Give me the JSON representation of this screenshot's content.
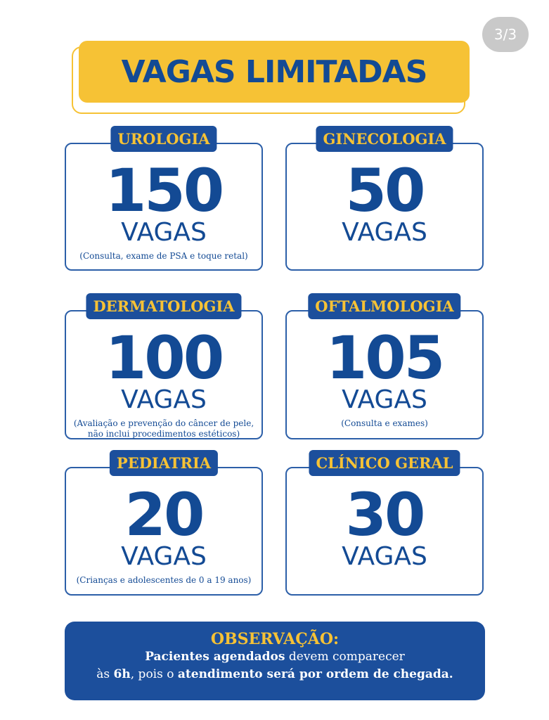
{
  "page_indicator": "3/3",
  "title": "VAGAS LIMITADAS",
  "cards": [
    {
      "specialty": "UROLOGIA",
      "number": 150,
      "unit": "VAGAS",
      "note": [
        "(Consulta, exame de PSA e toque retal)"
      ]
    },
    {
      "specialty": "GINECOLOGIA",
      "number": 50,
      "unit": "VAGAS",
      "note": []
    },
    {
      "specialty": "DERMATOLOGIA",
      "number": 100,
      "unit": "VAGAS",
      "note": [
        "(Avaliação e prevenção do câncer de pele,",
        "não inclui procedimentos estéticos)"
      ]
    },
    {
      "specialty": "OFTALMOLOGIA",
      "number": 105,
      "unit": "VAGAS",
      "note": [
        "(Consulta e exames)"
      ]
    },
    {
      "specialty": "PEDIATRIA",
      "number": 20,
      "unit": "VAGAS",
      "note": [
        "(Crianças e adolescentes de 0 a 19 anos)"
      ]
    },
    {
      "specialty": "CLÍNICO GERAL",
      "number": 30,
      "unit": "VAGAS",
      "note": []
    }
  ],
  "observation": {
    "title": "OBSERVAÇÃO:",
    "lines": [
      [
        {
          "text": "Pacientes agendados",
          "bold": true
        },
        {
          "text": " devem comparecer",
          "bold": false
        }
      ],
      [
        {
          "text": "às ",
          "bold": false
        },
        {
          "text": "6h",
          "bold": true
        },
        {
          "text": ", pois o ",
          "bold": false
        },
        {
          "text": "atendimento será por ordem de chegada.",
          "bold": true
        }
      ]
    ]
  }
}
